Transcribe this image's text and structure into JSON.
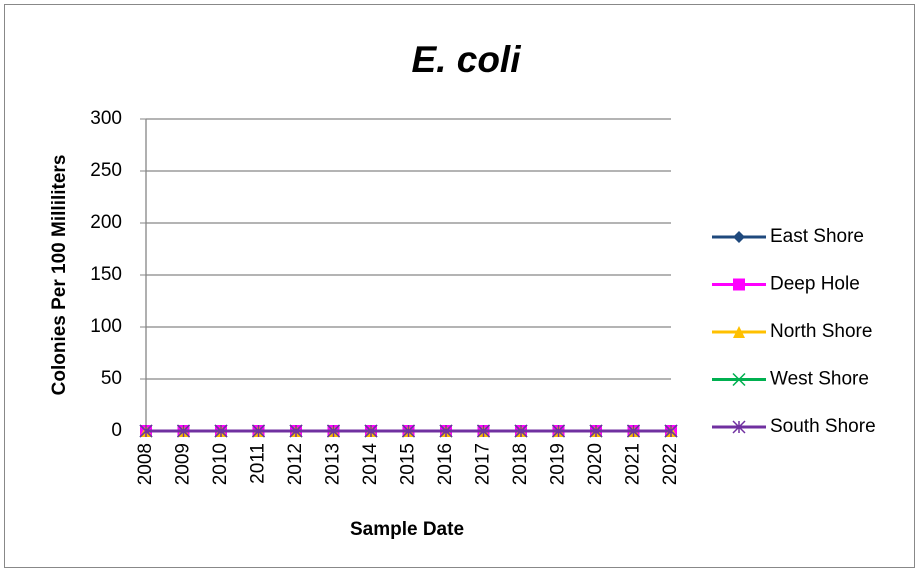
{
  "chart_data": {
    "type": "line",
    "title": "E. coli",
    "x_label": "Sample Date",
    "y_label": "Colonies Per 100 Milliliters",
    "categories": [
      "2008",
      "2009",
      "2010",
      "2011",
      "2012",
      "2013",
      "2014",
      "2015",
      "2016",
      "2017",
      "2018",
      "2019",
      "2020",
      "2021",
      "2022"
    ],
    "series": [
      {
        "name": "East Shore",
        "color": "#1f497d",
        "marker": "diamond",
        "values": [
          0,
          0,
          0,
          0,
          0,
          0,
          0,
          0,
          0,
          0,
          0,
          0,
          0,
          0,
          0
        ]
      },
      {
        "name": "Deep Hole",
        "color": "#ff00ff",
        "marker": "square",
        "values": [
          0,
          0,
          0,
          0,
          0,
          0,
          0,
          0,
          0,
          0,
          0,
          0,
          0,
          0,
          0
        ]
      },
      {
        "name": "North Shore",
        "color": "#ffc000",
        "marker": "triangle",
        "values": [
          0,
          0,
          0,
          0,
          0,
          0,
          0,
          0,
          0,
          0,
          0,
          0,
          0,
          0,
          0
        ]
      },
      {
        "name": "West Shore",
        "color": "#00b050",
        "marker": "x",
        "values": [
          0,
          0,
          0,
          0,
          0,
          0,
          0,
          0,
          0,
          0,
          0,
          0,
          0,
          0,
          0
        ]
      },
      {
        "name": "South Shore",
        "color": "#7030a0",
        "marker": "star",
        "values": [
          0,
          0,
          0,
          0,
          0,
          0,
          0,
          0,
          0,
          0,
          0,
          0,
          0,
          0,
          0
        ]
      }
    ],
    "ylim": [
      0,
      300
    ],
    "yticks": [
      0,
      50,
      100,
      150,
      200,
      250,
      300
    ],
    "grid": true,
    "legend": "right"
  }
}
